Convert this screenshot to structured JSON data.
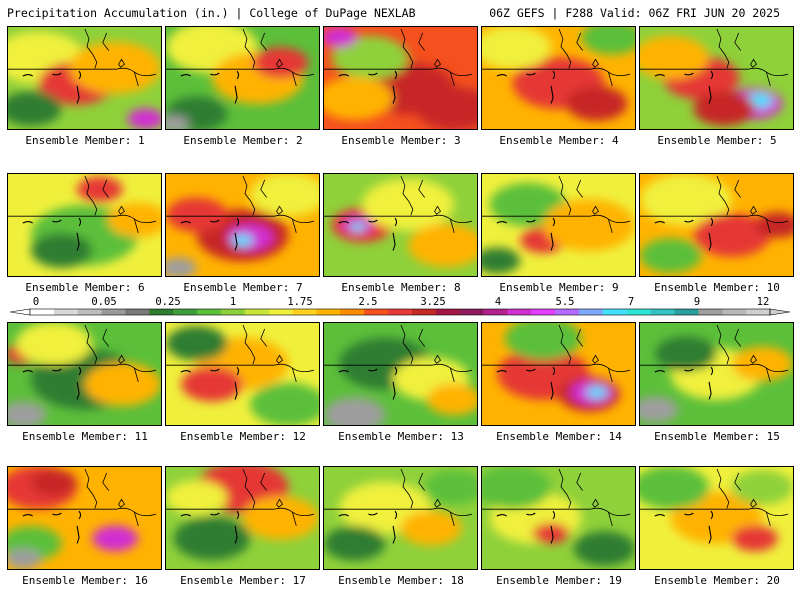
{
  "header": {
    "left": "Precipitation Accumulation (in.) | College of DuPage NEXLAB",
    "right": "06Z GEFS | F288 Valid: 06Z FRI JUN 20 2025"
  },
  "colorbar": {
    "labels": [
      "0",
      "0.05",
      "0.25",
      "1",
      "1.75",
      "2.5",
      "3.25",
      "4",
      "5.5",
      "7",
      "9",
      "12"
    ],
    "colors": [
      "#ffffff",
      "#d9d9d9",
      "#bdbdbd",
      "#9a9a9a",
      "#7a7a7a",
      "#2e7d32",
      "#3f9f3f",
      "#5cbf3a",
      "#8fd13a",
      "#c8e63a",
      "#f0f03c",
      "#ffd21e",
      "#ffb300",
      "#ff8c00",
      "#f4511e",
      "#e53935",
      "#c62828",
      "#a31545",
      "#8e1a5c",
      "#b0228c",
      "#d12fd1",
      "#e040fb",
      "#b36bff",
      "#7fa8ff",
      "#40e0ff",
      "#2ee6d6",
      "#34c2c2",
      "#2a9d9d",
      "#9e9e9e",
      "#b8b8b8",
      "#d0d0d0"
    ]
  },
  "panels": [
    {
      "label": "Ensemble Member: 1",
      "base": "#8fd13a",
      "blobs": [
        [
          "#f0f03c",
          0.2,
          0.3,
          0.3
        ],
        [
          "#e53935",
          0.45,
          0.55,
          0.25
        ],
        [
          "#ffb300",
          0.7,
          0.4,
          0.3
        ],
        [
          "#d12fd1",
          0.9,
          0.9,
          0.12
        ],
        [
          "#2e7d32",
          0.15,
          0.8,
          0.2
        ]
      ]
    },
    {
      "label": "Ensemble Member: 2",
      "base": "#5cbf3a",
      "blobs": [
        [
          "#f0f03c",
          0.3,
          0.2,
          0.3
        ],
        [
          "#ffb300",
          0.6,
          0.5,
          0.3
        ],
        [
          "#e53935",
          0.75,
          0.35,
          0.18
        ],
        [
          "#2e7d32",
          0.2,
          0.85,
          0.2
        ],
        [
          "#9e9e9e",
          0.05,
          0.95,
          0.1
        ]
      ]
    },
    {
      "label": "Ensemble Member: 3",
      "base": "#f4511e",
      "blobs": [
        [
          "#c62828",
          0.55,
          0.6,
          0.3
        ],
        [
          "#8fd13a",
          0.3,
          0.3,
          0.25
        ],
        [
          "#d12fd1",
          0.1,
          0.1,
          0.12
        ],
        [
          "#ffb300",
          0.2,
          0.7,
          0.25
        ],
        [
          "#c62828",
          0.85,
          0.8,
          0.25
        ]
      ]
    },
    {
      "label": "Ensemble Member: 4",
      "base": "#ffb300",
      "blobs": [
        [
          "#e53935",
          0.5,
          0.55,
          0.3
        ],
        [
          "#c62828",
          0.75,
          0.75,
          0.2
        ],
        [
          "#5cbf3a",
          0.85,
          0.1,
          0.2
        ],
        [
          "#f0f03c",
          0.2,
          0.2,
          0.25
        ]
      ]
    },
    {
      "label": "Ensemble Member: 5",
      "base": "#8fd13a",
      "blobs": [
        [
          "#e53935",
          0.4,
          0.5,
          0.25
        ],
        [
          "#ffb300",
          0.2,
          0.3,
          0.25
        ],
        [
          "#d12fd1",
          0.75,
          0.75,
          0.18
        ],
        [
          "#40e0ff",
          0.78,
          0.72,
          0.09
        ],
        [
          "#c62828",
          0.55,
          0.8,
          0.2
        ]
      ]
    },
    {
      "label": "Ensemble Member: 6",
      "base": "#f0f03c",
      "blobs": [
        [
          "#5cbf3a",
          0.5,
          0.6,
          0.35
        ],
        [
          "#2e7d32",
          0.35,
          0.75,
          0.2
        ],
        [
          "#e53935",
          0.6,
          0.15,
          0.15
        ],
        [
          "#ffb300",
          0.85,
          0.45,
          0.2
        ]
      ]
    },
    {
      "label": "Ensemble Member: 7",
      "base": "#ffb300",
      "blobs": [
        [
          "#c62828",
          0.5,
          0.6,
          0.3
        ],
        [
          "#d12fd1",
          0.55,
          0.62,
          0.15
        ],
        [
          "#40e0ff",
          0.5,
          0.65,
          0.07
        ],
        [
          "#9e9e9e",
          0.08,
          0.92,
          0.12
        ],
        [
          "#f0f03c",
          0.8,
          0.2,
          0.25
        ],
        [
          "#e53935",
          0.2,
          0.4,
          0.2
        ]
      ]
    },
    {
      "label": "Ensemble Member: 8",
      "base": "#8fd13a",
      "blobs": [
        [
          "#e53935",
          0.25,
          0.5,
          0.2
        ],
        [
          "#d12fd1",
          0.22,
          0.5,
          0.1
        ],
        [
          "#40e0ff",
          0.22,
          0.52,
          0.05
        ],
        [
          "#f0f03c",
          0.55,
          0.3,
          0.3
        ],
        [
          "#ffb300",
          0.8,
          0.7,
          0.25
        ]
      ]
    },
    {
      "label": "Ensemble Member: 9",
      "base": "#f0f03c",
      "blobs": [
        [
          "#5cbf3a",
          0.3,
          0.3,
          0.25
        ],
        [
          "#e53935",
          0.4,
          0.65,
          0.15
        ],
        [
          "#ffb300",
          0.7,
          0.5,
          0.3
        ],
        [
          "#2e7d32",
          0.1,
          0.85,
          0.15
        ]
      ]
    },
    {
      "label": "Ensemble Member: 10",
      "base": "#ffb300",
      "blobs": [
        [
          "#f0f03c",
          0.3,
          0.25,
          0.3
        ],
        [
          "#e53935",
          0.6,
          0.6,
          0.25
        ],
        [
          "#5cbf3a",
          0.2,
          0.8,
          0.2
        ],
        [
          "#c62828",
          0.9,
          0.5,
          0.15
        ]
      ]
    },
    {
      "label": "Ensemble Member: 11",
      "base": "#5cbf3a",
      "blobs": [
        [
          "#2e7d32",
          0.5,
          0.55,
          0.35
        ],
        [
          "#ffb300",
          0.75,
          0.6,
          0.25
        ],
        [
          "#e53935",
          0.1,
          0.3,
          0.12
        ],
        [
          "#9e9e9e",
          0.1,
          0.9,
          0.15
        ],
        [
          "#f0f03c",
          0.3,
          0.2,
          0.25
        ]
      ]
    },
    {
      "label": "Ensemble Member: 12",
      "base": "#f0f03c",
      "blobs": [
        [
          "#ffb300",
          0.5,
          0.4,
          0.3
        ],
        [
          "#e53935",
          0.3,
          0.6,
          0.2
        ],
        [
          "#2e7d32",
          0.2,
          0.2,
          0.2
        ],
        [
          "#5cbf3a",
          0.8,
          0.8,
          0.25
        ]
      ]
    },
    {
      "label": "Ensemble Member: 13",
      "base": "#5cbf3a",
      "blobs": [
        [
          "#2e7d32",
          0.4,
          0.4,
          0.3
        ],
        [
          "#f0f03c",
          0.7,
          0.55,
          0.25
        ],
        [
          "#ffb300",
          0.85,
          0.75,
          0.18
        ],
        [
          "#9e9e9e",
          0.2,
          0.9,
          0.2
        ]
      ]
    },
    {
      "label": "Ensemble Member: 14",
      "base": "#ffb300",
      "blobs": [
        [
          "#e53935",
          0.4,
          0.5,
          0.3
        ],
        [
          "#c62828",
          0.7,
          0.7,
          0.2
        ],
        [
          "#d12fd1",
          0.72,
          0.68,
          0.14
        ],
        [
          "#40e0ff",
          0.75,
          0.68,
          0.07
        ],
        [
          "#5cbf3a",
          0.4,
          0.15,
          0.25
        ]
      ]
    },
    {
      "label": "Ensemble Member: 15",
      "base": "#5cbf3a",
      "blobs": [
        [
          "#f0f03c",
          0.5,
          0.5,
          0.3
        ],
        [
          "#ffb300",
          0.8,
          0.4,
          0.2
        ],
        [
          "#9e9e9e",
          0.1,
          0.85,
          0.15
        ],
        [
          "#2e7d32",
          0.3,
          0.3,
          0.2
        ]
      ]
    },
    {
      "label": "Ensemble Member: 16",
      "base": "#ffb300",
      "blobs": [
        [
          "#e53935",
          0.2,
          0.2,
          0.25
        ],
        [
          "#c62828",
          0.3,
          0.15,
          0.15
        ],
        [
          "#d12fd1",
          0.7,
          0.7,
          0.15
        ],
        [
          "#5cbf3a",
          0.15,
          0.75,
          0.2
        ],
        [
          "#9e9e9e",
          0.1,
          0.9,
          0.12
        ]
      ]
    },
    {
      "label": "Ensemble Member: 17",
      "base": "#8fd13a",
      "blobs": [
        [
          "#e53935",
          0.5,
          0.2,
          0.3
        ],
        [
          "#2e7d32",
          0.3,
          0.7,
          0.25
        ],
        [
          "#ffb300",
          0.75,
          0.5,
          0.25
        ],
        [
          "#f0f03c",
          0.2,
          0.3,
          0.2
        ]
      ]
    },
    {
      "label": "Ensemble Member: 18",
      "base": "#8fd13a",
      "blobs": [
        [
          "#f0f03c",
          0.4,
          0.4,
          0.3
        ],
        [
          "#ffb300",
          0.7,
          0.6,
          0.2
        ],
        [
          "#2e7d32",
          0.2,
          0.75,
          0.2
        ],
        [
          "#5cbf3a",
          0.85,
          0.2,
          0.2
        ]
      ]
    },
    {
      "label": "Ensemble Member: 19",
      "base": "#8fd13a",
      "blobs": [
        [
          "#f0f03c",
          0.35,
          0.5,
          0.3
        ],
        [
          "#5cbf3a",
          0.2,
          0.2,
          0.25
        ],
        [
          "#e53935",
          0.45,
          0.65,
          0.12
        ],
        [
          "#2e7d32",
          0.8,
          0.8,
          0.2
        ]
      ]
    },
    {
      "label": "Ensemble Member: 20",
      "base": "#f0f03c",
      "blobs": [
        [
          "#ffb300",
          0.5,
          0.5,
          0.3
        ],
        [
          "#5cbf3a",
          0.2,
          0.2,
          0.25
        ],
        [
          "#e53935",
          0.75,
          0.7,
          0.15
        ],
        [
          "#8fd13a",
          0.8,
          0.2,
          0.2
        ]
      ]
    }
  ]
}
